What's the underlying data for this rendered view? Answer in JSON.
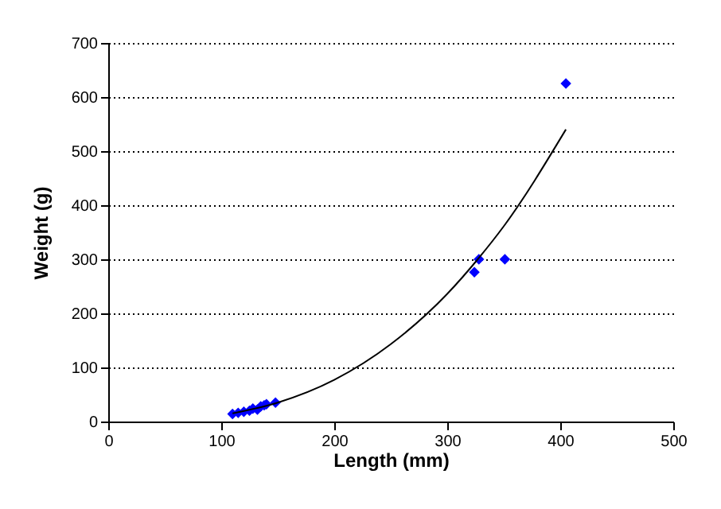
{
  "chart_data": {
    "type": "scatter",
    "xlabel": "Length (mm)",
    "ylabel": "Weight (g)",
    "xlim": [
      0,
      500
    ],
    "xticks": [
      0,
      100,
      200,
      300,
      400,
      500
    ],
    "ylim": [
      0,
      700
    ],
    "yticks": [
      0,
      100,
      200,
      300,
      400,
      500,
      600,
      700
    ],
    "grid": "y",
    "marker": "diamond",
    "series": [
      {
        "color": "#0000ff",
        "x": [
          110,
          115,
          120,
          125,
          128,
          132,
          135,
          138,
          140,
          148,
          324,
          328,
          351,
          405
        ],
        "values": [
          14,
          16,
          18,
          20,
          24,
          22,
          28,
          30,
          32,
          35,
          276,
          300,
          300,
          625
        ]
      },
      {
        "type": "line",
        "color": "#000000",
        "marker": "none",
        "x": [
          110,
          150,
          200,
          250,
          300,
          327,
          350,
          405
        ],
        "values": [
          15,
          35,
          77,
          143,
          236,
          300,
          361,
          540
        ]
      }
    ]
  }
}
